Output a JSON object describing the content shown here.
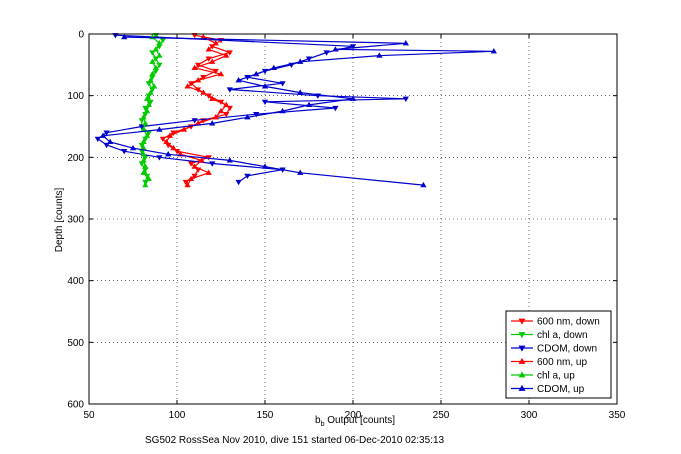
{
  "chart_data": {
    "type": "scatter",
    "xlabel_main": "b",
    "xlabel_sub": "b",
    "xlabel_rest": " Output [counts]",
    "ylabel": "Depth [counts]",
    "footer": "SG502 RossSea Nov 2010, dive 151 started 06-Dec-2010 02:35:13",
    "xlim": [
      50,
      350
    ],
    "ylim": [
      0,
      600
    ],
    "y_reversed": true,
    "grid": true,
    "legend_position": "bottom-right",
    "xticks": [
      50,
      100,
      150,
      200,
      250,
      300,
      350
    ],
    "yticks": [
      0,
      100,
      200,
      300,
      400,
      500,
      600
    ],
    "series": [
      {
        "name": "600 nm, down",
        "color": "#ff0000",
        "marker": "triangle-down",
        "depths": [
          2,
          10,
          20,
          30,
          40,
          50,
          60,
          70,
          80,
          90,
          100,
          110,
          120,
          130,
          140,
          150,
          160,
          170,
          180,
          190,
          200,
          210,
          220,
          230,
          240
        ],
        "values": [
          110,
          125,
          120,
          130,
          118,
          112,
          122,
          115,
          108,
          112,
          118,
          125,
          130,
          128,
          115,
          108,
          98,
          92,
          95,
          100,
          118,
          108,
          112,
          110,
          105
        ]
      },
      {
        "name": "chl a, down",
        "color": "#00cc00",
        "marker": "triangle-down",
        "depths": [
          2,
          10,
          20,
          30,
          40,
          50,
          60,
          70,
          80,
          90,
          100,
          110,
          120,
          130,
          140,
          150,
          160,
          170,
          180,
          190,
          200,
          210,
          220,
          230,
          240
        ],
        "values": [
          88,
          92,
          90,
          86,
          88,
          90,
          88,
          86,
          84,
          86,
          84,
          85,
          82,
          82,
          80,
          80,
          84,
          82,
          80,
          80,
          82,
          80,
          82,
          83,
          82
        ]
      },
      {
        "name": "CDOM, down",
        "color": "#0000cc",
        "marker": "triangle-down",
        "depths": [
          2,
          20,
          30,
          40,
          50,
          60,
          70,
          80,
          90,
          100,
          105,
          110,
          120,
          130,
          140,
          150,
          160,
          170,
          180,
          190,
          200,
          210,
          220,
          230,
          240
        ],
        "values": [
          65,
          200,
          185,
          175,
          165,
          150,
          140,
          160,
          130,
          180,
          230,
          150,
          190,
          145,
          110,
          80,
          60,
          55,
          60,
          70,
          90,
          120,
          160,
          140,
          135
        ]
      },
      {
        "name": "600 nm, up",
        "color": "#ff0000",
        "marker": "triangle-up",
        "depths": [
          5,
          15,
          25,
          35,
          45,
          55,
          65,
          75,
          85,
          95,
          105,
          115,
          125,
          135,
          145,
          155,
          165,
          175,
          185,
          195,
          205,
          215,
          225,
          235,
          245
        ],
        "values": [
          115,
          122,
          118,
          128,
          120,
          110,
          125,
          112,
          106,
          115,
          120,
          128,
          125,
          122,
          112,
          104,
          96,
          94,
          98,
          102,
          114,
          110,
          118,
          108,
          106
        ]
      },
      {
        "name": "chl a, up",
        "color": "#00cc00",
        "marker": "triangle-up",
        "depths": [
          5,
          15,
          25,
          35,
          45,
          55,
          65,
          75,
          85,
          95,
          105,
          115,
          125,
          135,
          145,
          155,
          165,
          175,
          185,
          195,
          205,
          215,
          225,
          235,
          245
        ],
        "values": [
          86,
          90,
          88,
          90,
          86,
          88,
          86,
          85,
          87,
          85,
          83,
          84,
          83,
          81,
          82,
          81,
          83,
          81,
          81,
          81,
          81,
          82,
          81,
          84,
          82
        ]
      },
      {
        "name": "CDOM, up",
        "color": "#0000cc",
        "marker": "triangle-up",
        "depths": [
          5,
          15,
          25,
          28,
          35,
          45,
          55,
          65,
          75,
          85,
          95,
          105,
          115,
          125,
          135,
          145,
          155,
          165,
          175,
          185,
          195,
          205,
          215,
          225,
          245
        ],
        "values": [
          70,
          230,
          190,
          280,
          215,
          170,
          155,
          145,
          135,
          150,
          170,
          200,
          175,
          160,
          140,
          120,
          90,
          58,
          62,
          75,
          95,
          130,
          150,
          170,
          240
        ]
      }
    ]
  }
}
